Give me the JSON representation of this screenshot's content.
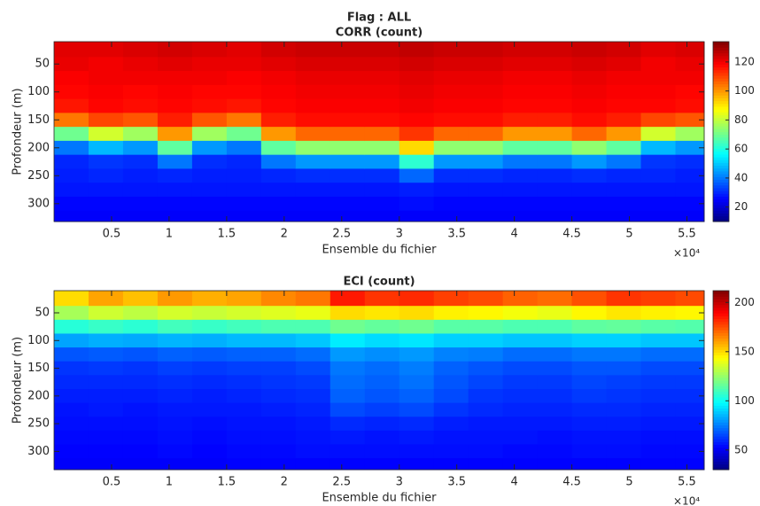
{
  "chart_data": [
    {
      "type": "heatmap",
      "title": [
        "Flag : ALL",
        "CORR (count)"
      ],
      "xlabel": "Ensemble du fichier",
      "ylabel": "Profondeur (m)",
      "x_exponent": "×10⁴",
      "colormap": "jet",
      "y_reversed": true,
      "xlim": [
        0,
        56500
      ],
      "ylim": [
        10,
        332
      ],
      "clim": [
        10,
        134
      ],
      "xticks": [
        {
          "value": 5000,
          "label": "0.5"
        },
        {
          "value": 10000,
          "label": "1"
        },
        {
          "value": 15000,
          "label": "1.5"
        },
        {
          "value": 20000,
          "label": "2"
        },
        {
          "value": 25000,
          "label": "2.5"
        },
        {
          "value": 30000,
          "label": "3"
        },
        {
          "value": 35000,
          "label": "3.5"
        },
        {
          "value": 40000,
          "label": "4"
        },
        {
          "value": 45000,
          "label": "4.5"
        },
        {
          "value": 50000,
          "label": "5"
        },
        {
          "value": 55000,
          "label": "5.5"
        }
      ],
      "yticks": [
        50,
        100,
        150,
        200,
        250,
        300
      ],
      "cticks": [
        20,
        40,
        60,
        80,
        100,
        120
      ],
      "x": [
        1500,
        4500,
        7500,
        10500,
        13500,
        16500,
        19500,
        22500,
        25500,
        28500,
        31500,
        34500,
        37500,
        40500,
        43500,
        46500,
        49500,
        52500,
        55500
      ],
      "y": [
        25,
        50,
        75,
        100,
        125,
        150,
        175,
        200,
        225,
        250,
        275,
        300,
        325
      ],
      "z": [
        [
          122,
          121,
          119,
          118,
          116,
          104,
          70,
          40,
          30,
          29,
          28,
          26,
          25
        ],
        [
          122,
          120,
          120,
          119,
          118,
          110,
          82,
          48,
          32,
          30,
          28,
          26,
          25
        ],
        [
          123,
          121,
          120,
          118,
          117,
          108,
          76,
          44,
          31,
          29,
          28,
          26,
          25
        ],
        [
          124,
          122,
          120,
          119,
          118,
          115,
          100,
          68,
          40,
          30,
          28,
          26,
          25
        ],
        [
          123,
          121,
          120,
          118,
          117,
          108,
          76,
          44,
          31,
          29,
          28,
          26,
          25
        ],
        [
          122,
          121,
          119,
          118,
          116,
          104,
          70,
          40,
          30,
          29,
          28,
          26,
          25
        ],
        [
          124,
          122,
          120,
          119,
          118,
          115,
          100,
          68,
          40,
          30,
          28,
          26,
          25
        ],
        [
          125,
          123,
          121,
          120,
          119,
          117,
          106,
          74,
          44,
          31,
          28,
          26,
          25
        ],
        [
          125,
          123,
          121,
          120,
          119,
          117,
          106,
          74,
          44,
          31,
          28,
          26,
          25
        ],
        [
          125,
          123,
          121,
          120,
          119,
          117,
          106,
          74,
          44,
          31,
          28,
          26,
          25
        ],
        [
          126,
          124,
          122,
          121,
          120,
          118,
          112,
          92,
          62,
          38,
          29,
          27,
          25
        ],
        [
          125,
          123,
          121,
          120,
          119,
          117,
          106,
          74,
          44,
          31,
          28,
          26,
          25
        ],
        [
          125,
          123,
          121,
          120,
          119,
          117,
          106,
          74,
          44,
          31,
          28,
          26,
          25
        ],
        [
          124,
          122,
          120,
          119,
          118,
          115,
          100,
          68,
          40,
          30,
          28,
          26,
          25
        ],
        [
          124,
          122,
          120,
          119,
          118,
          115,
          100,
          68,
          40,
          30,
          28,
          26,
          25
        ],
        [
          125,
          123,
          121,
          120,
          119,
          117,
          106,
          74,
          44,
          31,
          28,
          26,
          25
        ],
        [
          124,
          122,
          120,
          119,
          118,
          115,
          100,
          68,
          40,
          30,
          28,
          26,
          25
        ],
        [
          122,
          120,
          120,
          119,
          118,
          110,
          82,
          48,
          32,
          30,
          28,
          26,
          25
        ],
        [
          123,
          121,
          120,
          118,
          117,
          108,
          76,
          44,
          31,
          29,
          28,
          26,
          25
        ]
      ]
    },
    {
      "type": "heatmap",
      "title": [
        "ECI (count)"
      ],
      "xlabel": "Ensemble du fichier",
      "ylabel": "Profondeur (m)",
      "x_exponent": "×10⁴",
      "colormap": "jet",
      "y_reversed": true,
      "xlim": [
        0,
        56500
      ],
      "ylim": [
        10,
        333
      ],
      "clim": [
        30,
        212
      ],
      "xticks": [
        {
          "value": 5000,
          "label": "0.5"
        },
        {
          "value": 10000,
          "label": "1"
        },
        {
          "value": 15000,
          "label": "1.5"
        },
        {
          "value": 20000,
          "label": "2"
        },
        {
          "value": 25000,
          "label": "2.5"
        },
        {
          "value": 30000,
          "label": "3"
        },
        {
          "value": 35000,
          "label": "3.5"
        },
        {
          "value": 40000,
          "label": "4"
        },
        {
          "value": 45000,
          "label": "4.5"
        },
        {
          "value": 50000,
          "label": "5"
        },
        {
          "value": 55000,
          "label": "5.5"
        }
      ],
      "yticks": [
        50,
        100,
        150,
        200,
        250,
        300
      ],
      "cticks": [
        50,
        100,
        150,
        200
      ],
      "x": [
        1500,
        4500,
        7500,
        10500,
        13500,
        16500,
        19500,
        22500,
        25500,
        28500,
        31500,
        34500,
        37500,
        40500,
        43500,
        46500,
        49500,
        52500,
        55500
      ],
      "y": [
        25,
        50,
        75,
        100,
        125,
        150,
        175,
        200,
        225,
        250,
        275,
        300,
        325
      ],
      "z": [
        [
          150,
          128,
          105,
          82,
          68,
          62,
          60,
          58,
          56,
          55,
          54,
          53,
          52
        ],
        [
          160,
          135,
          108,
          84,
          69,
          63,
          60,
          58,
          57,
          55,
          54,
          53,
          52
        ],
        [
          155,
          132,
          106,
          83,
          68,
          62,
          60,
          58,
          56,
          55,
          54,
          53,
          52
        ],
        [
          162,
          136,
          110,
          85,
          70,
          64,
          61,
          59,
          57,
          56,
          55,
          54,
          52
        ],
        [
          158,
          134,
          108,
          84,
          69,
          63,
          60,
          58,
          57,
          55,
          54,
          53,
          52
        ],
        [
          160,
          136,
          110,
          86,
          70,
          64,
          61,
          59,
          57,
          56,
          55,
          54,
          53
        ],
        [
          165,
          138,
          112,
          86,
          70,
          64,
          62,
          60,
          58,
          56,
          55,
          54,
          53
        ],
        [
          168,
          140,
          112,
          88,
          72,
          66,
          63,
          61,
          59,
          57,
          56,
          55,
          53
        ],
        [
          185,
          150,
          118,
          95,
          80,
          74,
          72,
          70,
          66,
          60,
          57,
          55,
          53
        ],
        [
          180,
          148,
          116,
          92,
          78,
          72,
          70,
          68,
          64,
          59,
          56,
          55,
          53
        ],
        [
          182,
          150,
          118,
          94,
          80,
          75,
          73,
          70,
          66,
          60,
          57,
          55,
          53
        ],
        [
          178,
          146,
          114,
          90,
          76,
          70,
          68,
          66,
          62,
          58,
          56,
          55,
          53
        ],
        [
          176,
          145,
          114,
          90,
          75,
          68,
          65,
          62,
          60,
          57,
          56,
          55,
          53
        ],
        [
          172,
          142,
          112,
          88,
          72,
          66,
          63,
          61,
          59,
          57,
          56,
          54,
          53
        ],
        [
          170,
          140,
          112,
          88,
          72,
          66,
          63,
          61,
          59,
          57,
          55,
          54,
          53
        ],
        [
          175,
          145,
          115,
          90,
          74,
          68,
          65,
          63,
          60,
          58,
          56,
          55,
          53
        ],
        [
          180,
          148,
          116,
          90,
          74,
          68,
          64,
          62,
          60,
          58,
          56,
          55,
          53
        ],
        [
          178,
          146,
          114,
          88,
          72,
          66,
          63,
          61,
          59,
          57,
          55,
          54,
          53
        ],
        [
          176,
          145,
          113,
          88,
          72,
          66,
          63,
          61,
          59,
          57,
          55,
          54,
          53
        ]
      ]
    }
  ]
}
